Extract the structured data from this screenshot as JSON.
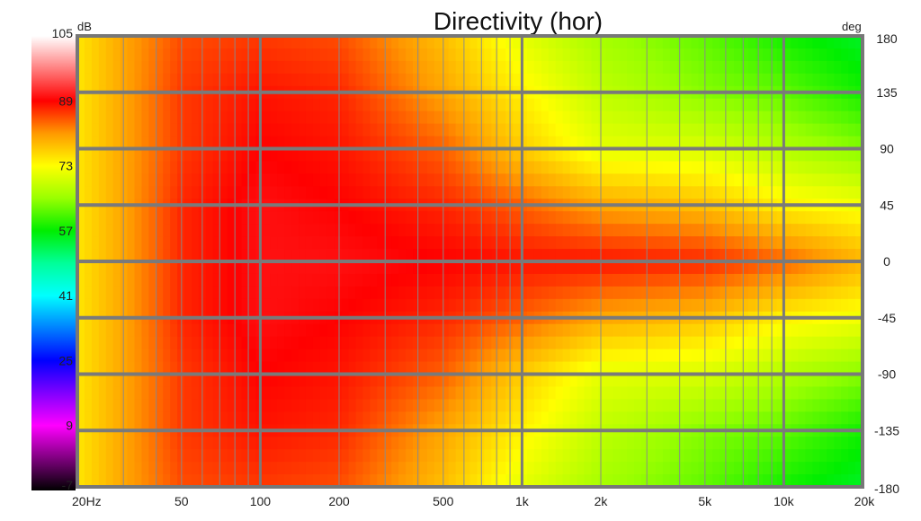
{
  "chart_data": {
    "type": "heatmap",
    "title": "Directivity (hor)",
    "colorbar_unit": "dB",
    "yaxis_unit": "deg",
    "x_scale": "log",
    "x_range": [
      20,
      20000
    ],
    "y_range": [
      -180,
      180
    ],
    "color_range": [
      -7,
      105
    ],
    "x_tick_labels": [
      "20Hz",
      "50",
      "100",
      "200",
      "500",
      "1k",
      "2k",
      "5k",
      "10k",
      "20k"
    ],
    "x_tick_values": [
      20,
      50,
      100,
      200,
      500,
      1000,
      2000,
      5000,
      10000,
      20000
    ],
    "y_tick_labels": [
      "180",
      "135",
      "90",
      "45",
      "0",
      "-45",
      "-90",
      "-135",
      "-180"
    ],
    "y_tick_values": [
      180,
      135,
      90,
      45,
      0,
      -45,
      -90,
      -135,
      -180
    ],
    "colorbar_tick_labels": [
      "105",
      "89",
      "73",
      "57",
      "41",
      "25",
      "9",
      "-7"
    ],
    "colorbar_tick_values": [
      105,
      89,
      73,
      57,
      41,
      25,
      9,
      -7
    ],
    "colorbar_stops": [
      {
        "value": 105,
        "color": "#ffffff"
      },
      {
        "value": 97,
        "color": "#ff8080"
      },
      {
        "value": 89,
        "color": "#ff0000"
      },
      {
        "value": 81,
        "color": "#ff9900"
      },
      {
        "value": 73,
        "color": "#ffff00"
      },
      {
        "value": 65,
        "color": "#99ff00"
      },
      {
        "value": 57,
        "color": "#00ee00"
      },
      {
        "value": 49,
        "color": "#00ff99"
      },
      {
        "value": 41,
        "color": "#00ffff"
      },
      {
        "value": 33,
        "color": "#0080ff"
      },
      {
        "value": 25,
        "color": "#0000ff"
      },
      {
        "value": 17,
        "color": "#8000ff"
      },
      {
        "value": 9,
        "color": "#ff00ff"
      },
      {
        "value": 1,
        "color": "#800080"
      },
      {
        "value": -7,
        "color": "#000000"
      }
    ],
    "angles_deg": [
      180,
      135,
      90,
      45,
      0,
      -45,
      -90,
      -135,
      -180
    ],
    "frequencies_hz": [
      20,
      30,
      50,
      100,
      200,
      500,
      1000,
      2000,
      5000,
      10000,
      20000
    ],
    "levels_db": [
      [
        75,
        80,
        85,
        86,
        85,
        78,
        71,
        66,
        62,
        58,
        55
      ],
      [
        75,
        80,
        86,
        88,
        87,
        80,
        74,
        68,
        64,
        62,
        58
      ],
      [
        75,
        80,
        86,
        89,
        88,
        84,
        77,
        71,
        70,
        67,
        64
      ],
      [
        75,
        80,
        87,
        90,
        89,
        87,
        84,
        80,
        78,
        74,
        72
      ],
      [
        75,
        80,
        87,
        90,
        90,
        89,
        88,
        88,
        87,
        84,
        79
      ],
      [
        75,
        80,
        87,
        90,
        89,
        87,
        84,
        80,
        78,
        74,
        72
      ],
      [
        75,
        80,
        86,
        89,
        88,
        84,
        77,
        71,
        70,
        67,
        64
      ],
      [
        75,
        80,
        86,
        88,
        87,
        80,
        74,
        68,
        64,
        62,
        58
      ],
      [
        75,
        80,
        85,
        86,
        85,
        78,
        71,
        66,
        62,
        58,
        55
      ]
    ],
    "grid": true,
    "legend": "colorbar-left"
  }
}
